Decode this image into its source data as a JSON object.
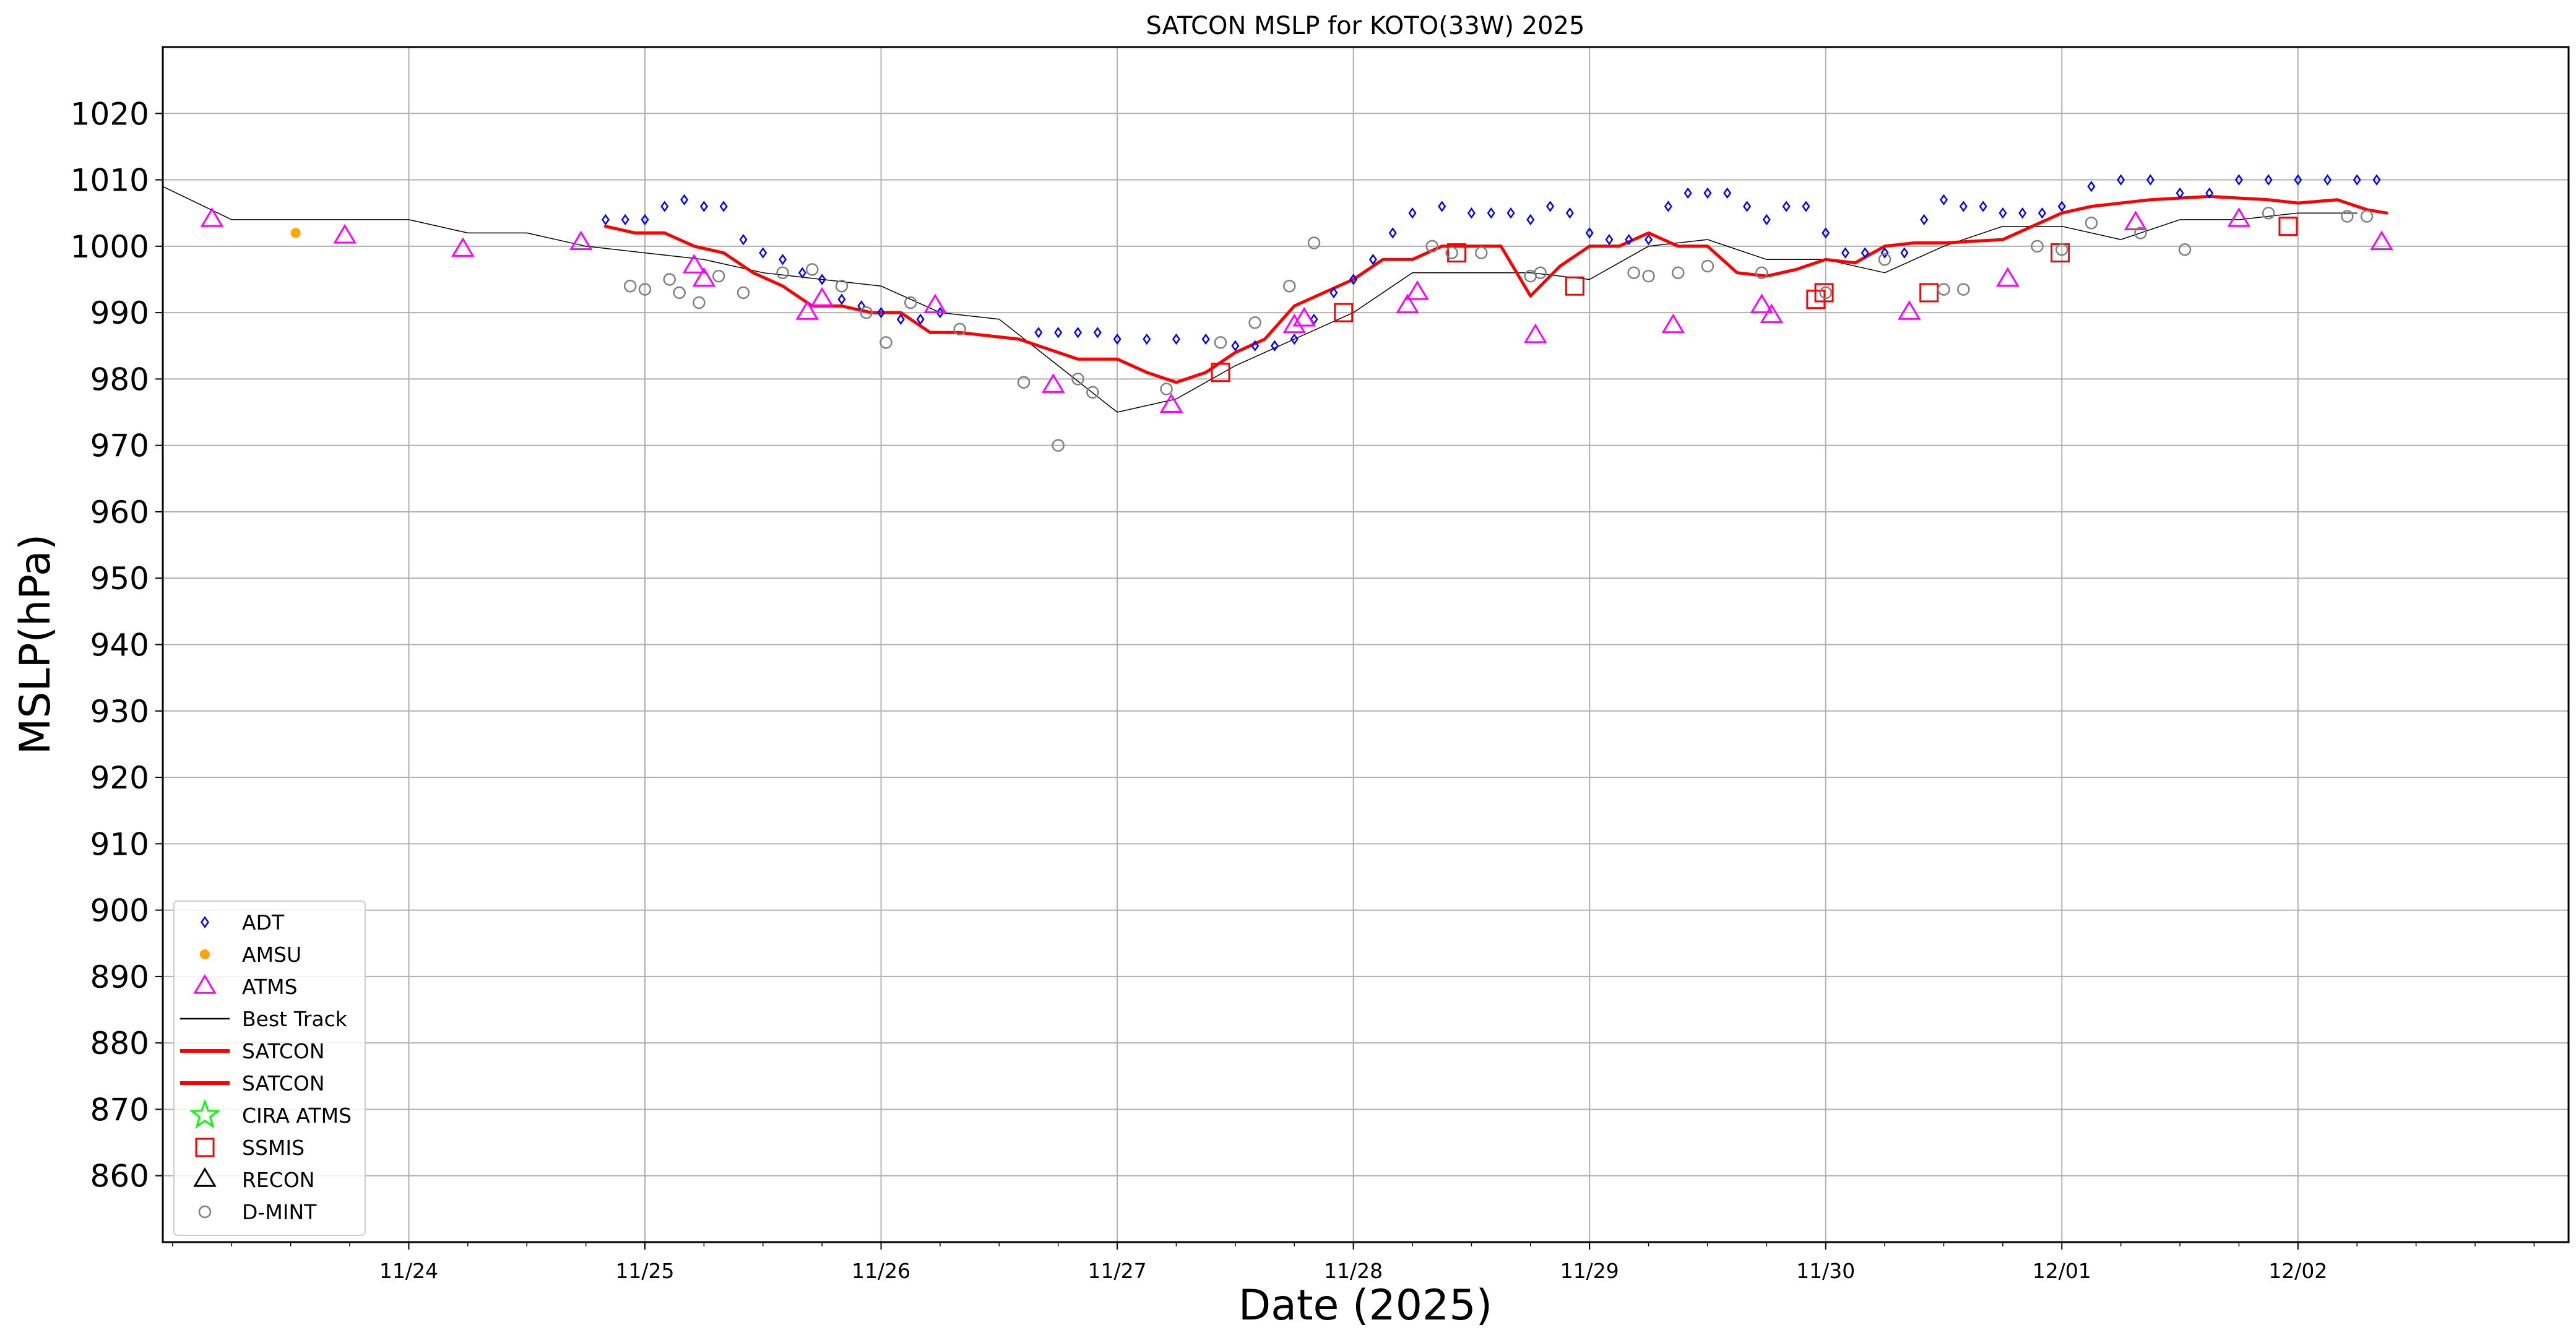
{
  "chart_data": {
    "type": "scatter",
    "title": "SATCON MSLP for KOTO(33W) 2025",
    "xlabel": "Date (2025)",
    "ylabel": "MSLP(hPa)",
    "x_unit": "date (2025, UTC)",
    "xlim": [
      "2025-11-22T23:00",
      "2025-12-03T03:30"
    ],
    "ylim": [
      850,
      1030
    ],
    "yticks": [
      860,
      870,
      880,
      890,
      900,
      910,
      920,
      930,
      940,
      950,
      960,
      970,
      980,
      990,
      1000,
      1010,
      1020
    ],
    "xticks": [
      {
        "x": "2025-11-24T00:00",
        "label": "11/24"
      },
      {
        "x": "2025-11-25T00:00",
        "label": "11/25"
      },
      {
        "x": "2025-11-26T00:00",
        "label": "11/26"
      },
      {
        "x": "2025-11-27T00:00",
        "label": "11/27"
      },
      {
        "x": "2025-11-28T00:00",
        "label": "11/28"
      },
      {
        "x": "2025-11-29T00:00",
        "label": "11/29"
      },
      {
        "x": "2025-11-30T00:00",
        "label": "11/30"
      },
      {
        "x": "2025-12-01T00:00",
        "label": "12/01"
      },
      {
        "x": "2025-12-02T00:00",
        "label": "12/02"
      }
    ],
    "grid": true,
    "legend_position": "lower-left",
    "series": [
      {
        "name": "ADT",
        "kind": "marker",
        "marker": "diamond",
        "color": "#0000ff",
        "x": [
          "2025-11-24T20:00",
          "2025-11-24T22:00",
          "2025-11-25T00:00",
          "2025-11-25T02:00",
          "2025-11-25T04:00",
          "2025-11-25T06:00",
          "2025-11-25T08:00",
          "2025-11-25T10:00",
          "2025-11-25T12:00",
          "2025-11-25T14:00",
          "2025-11-25T16:00",
          "2025-11-25T18:00",
          "2025-11-25T20:00",
          "2025-11-25T22:00",
          "2025-11-26T00:00",
          "2025-11-26T02:00",
          "2025-11-26T04:00",
          "2025-11-26T06:00",
          "2025-11-26T16:00",
          "2025-11-26T18:00",
          "2025-11-26T20:00",
          "2025-11-26T22:00",
          "2025-11-27T00:00",
          "2025-11-27T03:00",
          "2025-11-27T06:00",
          "2025-11-27T09:00",
          "2025-11-27T12:00",
          "2025-11-27T14:00",
          "2025-11-27T16:00",
          "2025-11-27T18:00",
          "2025-11-27T20:00",
          "2025-11-27T22:00",
          "2025-11-28T00:00",
          "2025-11-28T02:00",
          "2025-11-28T04:00",
          "2025-11-28T06:00",
          "2025-11-28T09:00",
          "2025-11-28T12:00",
          "2025-11-28T14:00",
          "2025-11-28T16:00",
          "2025-11-28T18:00",
          "2025-11-28T20:00",
          "2025-11-28T22:00",
          "2025-11-29T00:00",
          "2025-11-29T02:00",
          "2025-11-29T04:00",
          "2025-11-29T06:00",
          "2025-11-29T08:00",
          "2025-11-29T10:00",
          "2025-11-29T12:00",
          "2025-11-29T14:00",
          "2025-11-29T16:00",
          "2025-11-29T18:00",
          "2025-11-29T20:00",
          "2025-11-29T22:00",
          "2025-11-30T00:00",
          "2025-11-30T02:00",
          "2025-11-30T04:00",
          "2025-11-30T06:00",
          "2025-11-30T08:00",
          "2025-11-30T10:00",
          "2025-11-30T12:00",
          "2025-11-30T14:00",
          "2025-11-30T16:00",
          "2025-11-30T18:00",
          "2025-11-30T20:00",
          "2025-11-30T22:00",
          "2025-12-01T00:00",
          "2025-12-01T03:00",
          "2025-12-01T06:00",
          "2025-12-01T09:00",
          "2025-12-01T12:00",
          "2025-12-01T15:00",
          "2025-12-01T18:00",
          "2025-12-01T21:00",
          "2025-12-02T00:00",
          "2025-12-02T03:00",
          "2025-12-02T06:00",
          "2025-12-02T08:00"
        ],
        "y": [
          1004,
          1004,
          1004,
          1006,
          1007,
          1006,
          1006,
          1001,
          999,
          998,
          996,
          995,
          992,
          991,
          990,
          989,
          989,
          990,
          987,
          987,
          987,
          987,
          986,
          986,
          986,
          986,
          985,
          985,
          985,
          986,
          989,
          993,
          995,
          998,
          1002,
          1005,
          1006,
          1005,
          1005,
          1005,
          1004,
          1006,
          1005,
          1002,
          1001,
          1001,
          1001,
          1006,
          1008,
          1008,
          1008,
          1006,
          1004,
          1006,
          1006,
          1002,
          999,
          999,
          999,
          999,
          1004,
          1007,
          1006,
          1006,
          1005,
          1005,
          1005,
          1006,
          1009,
          1010,
          1010,
          1008,
          1008,
          1010,
          1010,
          1010,
          1010,
          1010,
          1010
        ]
      },
      {
        "name": "AMSU",
        "kind": "marker",
        "marker": "circle",
        "color": "#ffa500",
        "x": [
          "2025-11-23T12:30"
        ],
        "y": [
          1002
        ]
      },
      {
        "name": "ATMS",
        "kind": "marker",
        "marker": "triangle",
        "color": "#ff00ff",
        "x": [
          "2025-11-23T04:00",
          "2025-11-23T17:30",
          "2025-11-24T05:30",
          "2025-11-24T17:30",
          "2025-11-25T05:00",
          "2025-11-25T06:00",
          "2025-11-25T16:30",
          "2025-11-25T18:00",
          "2025-11-26T05:30",
          "2025-11-26T17:30",
          "2025-11-27T05:30",
          "2025-11-27T18:00",
          "2025-11-27T19:00",
          "2025-11-28T05:30",
          "2025-11-28T06:30",
          "2025-11-28T18:30",
          "2025-11-29T08:30",
          "2025-11-29T17:30",
          "2025-11-29T18:30",
          "2025-11-30T08:30",
          "2025-11-30T18:30",
          "2025-12-01T07:30",
          "2025-12-01T18:00",
          "2025-12-02T08:30"
        ],
        "y": [
          1004,
          1001.5,
          999.5,
          1000.5,
          997,
          995,
          990,
          992,
          991,
          979,
          976,
          988,
          989,
          991,
          993,
          986.5,
          988,
          991,
          989.5,
          990,
          995,
          1003.5,
          1004,
          1000.5
        ]
      },
      {
        "name": "Best Track",
        "kind": "line",
        "color": "#000000",
        "line_width": 1.5,
        "x": [
          "2025-11-22T23:00",
          "2025-11-23T06:00",
          "2025-11-24T00:00",
          "2025-11-24T06:00",
          "2025-11-24T12:00",
          "2025-11-24T18:00",
          "2025-11-25T00:00",
          "2025-11-25T06:00",
          "2025-11-25T12:00",
          "2025-11-25T18:00",
          "2025-11-26T00:00",
          "2025-11-26T06:00",
          "2025-11-26T12:00",
          "2025-11-26T18:00",
          "2025-11-27T00:00",
          "2025-11-27T06:00",
          "2025-11-27T12:00",
          "2025-11-27T18:00",
          "2025-11-28T00:00",
          "2025-11-28T06:00",
          "2025-11-28T12:00",
          "2025-11-28T18:00",
          "2025-11-29T00:00",
          "2025-11-29T06:00",
          "2025-11-29T12:00",
          "2025-11-29T18:00",
          "2025-11-30T00:00",
          "2025-11-30T06:00",
          "2025-11-30T12:00",
          "2025-11-30T18:00",
          "2025-12-01T00:00",
          "2025-12-01T06:00",
          "2025-12-01T12:00",
          "2025-12-01T18:00",
          "2025-12-02T00:00",
          "2025-12-02T06:00"
        ],
        "y": [
          1009,
          1004,
          1004,
          1002,
          1002,
          1000,
          999,
          998,
          996,
          995,
          994,
          990,
          989,
          982,
          975,
          977,
          982,
          986,
          990,
          996,
          996,
          996,
          995,
          1000,
          1001,
          998,
          998,
          996,
          1000,
          1003,
          1003,
          1001,
          1004,
          1004,
          1005,
          1005
        ]
      },
      {
        "name": "SATCON",
        "kind": "line",
        "color": "#ff0000",
        "line_width": 5,
        "x": [
          "2025-11-24T20:00",
          "2025-11-24T23:00",
          "2025-11-25T02:00",
          "2025-11-25T05:00",
          "2025-11-25T08:00",
          "2025-11-25T11:00",
          "2025-11-25T14:00",
          "2025-11-25T17:00",
          "2025-11-25T20:00",
          "2025-11-25T23:00",
          "2025-11-26T02:00",
          "2025-11-26T05:00",
          "2025-11-26T08:00",
          "2025-11-26T14:00",
          "2025-11-26T20:00",
          "2025-11-26T22:00",
          "2025-11-27T00:00",
          "2025-11-27T03:00",
          "2025-11-27T06:00",
          "2025-11-27T09:00",
          "2025-11-27T12:00",
          "2025-11-27T15:00",
          "2025-11-27T18:00",
          "2025-11-27T21:00",
          "2025-11-28T00:00",
          "2025-11-28T03:00",
          "2025-11-28T06:00",
          "2025-11-28T09:00",
          "2025-11-28T12:00",
          "2025-11-28T15:00",
          "2025-11-28T18:00",
          "2025-11-28T21:00",
          "2025-11-29T00:00",
          "2025-11-29T03:00",
          "2025-11-29T06:00",
          "2025-11-29T09:00",
          "2025-11-29T12:00",
          "2025-11-29T15:00",
          "2025-11-29T18:00",
          "2025-11-29T21:00",
          "2025-11-30T00:00",
          "2025-11-30T03:00",
          "2025-11-30T06:00",
          "2025-11-30T09:00",
          "2025-11-30T12:00",
          "2025-11-30T18:00",
          "2025-12-01T00:00",
          "2025-12-01T03:00",
          "2025-12-01T09:00",
          "2025-12-01T15:00",
          "2025-12-01T21:00",
          "2025-12-02T00:00",
          "2025-12-02T04:00",
          "2025-12-02T07:00",
          "2025-12-02T09:00"
        ],
        "y": [
          1003,
          1002,
          1002,
          1000,
          999,
          996,
          994,
          991,
          991,
          990,
          990,
          987,
          987,
          986,
          983,
          983,
          983,
          981,
          979.5,
          981,
          984,
          986,
          991,
          993,
          995,
          998,
          998,
          1000,
          1000,
          1000,
          992.5,
          997,
          1000,
          1000,
          1002,
          1000,
          1000,
          996,
          995.5,
          996.5,
          998,
          997.5,
          1000,
          1000.5,
          1000.5,
          1001,
          1005,
          1006,
          1007,
          1007.5,
          1007,
          1006.5,
          1007,
          1005.5,
          1005
        ]
      },
      {
        "name": "SATCON",
        "kind": "line",
        "color": "#ff0000",
        "line_width": 5,
        "x": [],
        "y": []
      },
      {
        "name": "CIRA ATMS",
        "kind": "marker",
        "marker": "star",
        "color": "#00ff00",
        "x": [],
        "y": []
      },
      {
        "name": "SSMIS",
        "kind": "marker",
        "marker": "square",
        "color": "#ff0000",
        "x": [
          "2025-11-27T10:30",
          "2025-11-27T23:00",
          "2025-11-28T10:30",
          "2025-11-28T22:30",
          "2025-11-29T23:00",
          "2025-11-29T23:50",
          "2025-11-30T10:30",
          "2025-11-30T23:50",
          "2025-12-01T23:00"
        ],
        "y": [
          981,
          990,
          999,
          994,
          992,
          993,
          993,
          999,
          1003
        ]
      },
      {
        "name": "RECON",
        "kind": "marker",
        "marker": "triangle",
        "color": "#000000",
        "x": [],
        "y": []
      },
      {
        "name": "D-MINT",
        "kind": "marker",
        "marker": "circle-open",
        "color": "#808080",
        "x": [
          "2025-11-24T22:30",
          "2025-11-25T00:00",
          "2025-11-25T02:30",
          "2025-11-25T03:30",
          "2025-11-25T05:30",
          "2025-11-25T07:30",
          "2025-11-25T10:00",
          "2025-11-25T14:00",
          "2025-11-25T17:00",
          "2025-11-25T20:00",
          "2025-11-25T22:30",
          "2025-11-26T00:30",
          "2025-11-26T03:00",
          "2025-11-26T08:00",
          "2025-11-26T14:30",
          "2025-11-26T18:00",
          "2025-11-26T20:00",
          "2025-11-26T21:30",
          "2025-11-27T05:00",
          "2025-11-27T10:30",
          "2025-11-27T14:00",
          "2025-11-27T17:30",
          "2025-11-27T20:00",
          "2025-11-28T08:00",
          "2025-11-28T10:00",
          "2025-11-28T13:00",
          "2025-11-28T18:00",
          "2025-11-28T19:00",
          "2025-11-29T04:30",
          "2025-11-29T06:00",
          "2025-11-29T09:00",
          "2025-11-29T12:00",
          "2025-11-29T17:30",
          "2025-11-30T00:00",
          "2025-11-30T06:00",
          "2025-11-30T12:00",
          "2025-11-30T14:00",
          "2025-11-30T21:30",
          "2025-12-01T00:00",
          "2025-12-01T03:00",
          "2025-12-01T08:00",
          "2025-12-01T12:30",
          "2025-12-01T21:00",
          "2025-12-02T05:00",
          "2025-12-02T07:00"
        ],
        "y": [
          994,
          993.5,
          995,
          993,
          991.5,
          995.5,
          993,
          996,
          996.5,
          994,
          990,
          985.5,
          991.5,
          987.5,
          979.5,
          970,
          980,
          978,
          978.5,
          985.5,
          988.5,
          994,
          1000.5,
          1000,
          999,
          999,
          995.5,
          996,
          996,
          995.5,
          996,
          997,
          996,
          993,
          998,
          993.5,
          993.5,
          1000,
          999.5,
          1003.5,
          1002,
          999.5,
          1005,
          1004.5,
          1004.5
        ]
      }
    ],
    "legend": [
      {
        "label": "ADT",
        "marker": "diamond",
        "color": "#0000ff"
      },
      {
        "label": "AMSU",
        "marker": "circle",
        "color": "#ffa500"
      },
      {
        "label": "ATMS",
        "marker": "triangle",
        "color": "#ff00ff"
      },
      {
        "label": "Best Track",
        "marker": "line",
        "color": "#000000"
      },
      {
        "label": "SATCON",
        "marker": "thick-line",
        "color": "#ff0000"
      },
      {
        "label": "SATCON",
        "marker": "thick-line",
        "color": "#ff0000"
      },
      {
        "label": "CIRA ATMS",
        "marker": "star",
        "color": "#00ff00"
      },
      {
        "label": "SSMIS",
        "marker": "square",
        "color": "#ff0000"
      },
      {
        "label": "RECON",
        "marker": "triangle",
        "color": "#000000"
      },
      {
        "label": "D-MINT",
        "marker": "circle-open",
        "color": "#808080"
      }
    ]
  }
}
